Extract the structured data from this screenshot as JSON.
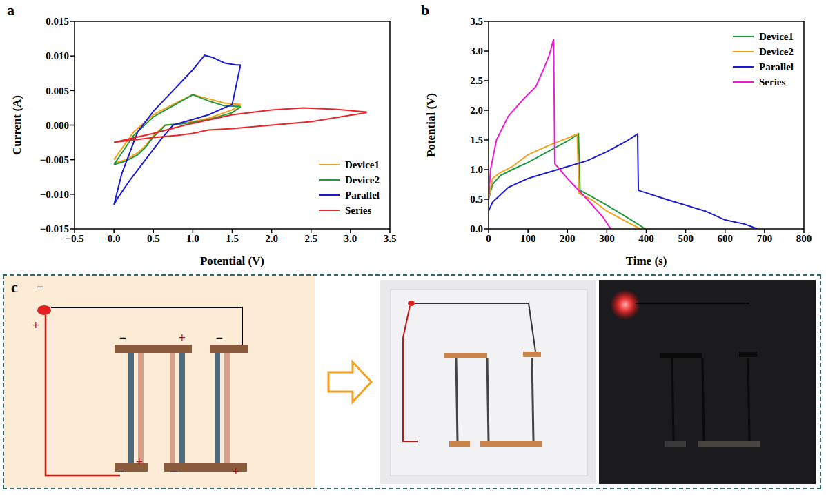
{
  "chart_data": [
    {
      "panel_label": "a",
      "type": "line",
      "x_label": "Potential (V)",
      "y_label": "Current (A)",
      "xlim": [
        -0.5,
        3.5
      ],
      "xticks": [
        {
          "value": -0.5,
          "label": "−0.5"
        },
        {
          "value": 0,
          "label": "0.0"
        },
        0.5,
        {
          "value": 1,
          "label": "1.0"
        },
        1.5,
        {
          "value": 2,
          "label": "2.0"
        },
        2.5,
        {
          "value": 3,
          "label": "3.0"
        },
        3.5
      ],
      "ylim": [
        -0.015,
        0.015
      ],
      "yticks": [
        {
          "value": -0.015,
          "label": "−0.015"
        },
        {
          "value": -0.01,
          "label": "−0.010"
        },
        {
          "value": -0.005,
          "label": "−0.005"
        },
        {
          "value": 0,
          "label": "0.000"
        },
        {
          "value": 0.005,
          "label": "0.005"
        },
        {
          "value": 0.01,
          "label": "0.010"
        },
        {
          "value": 0.015,
          "label": "0.015"
        }
      ],
      "legend": "lower right",
      "series": [
        {
          "name": "Device1",
          "color": "#f7a11a",
          "x": [
            0,
            0.25,
            0.5,
            0.75,
            1.0,
            1.2,
            1.4,
            1.6,
            1.6,
            1.5,
            1.2,
            1.0,
            0.8,
            0.65,
            0.6,
            0.5,
            0.4,
            0.3,
            0.15,
            0
          ],
          "values": [
            -0.005,
            -0.001,
            0.0015,
            0.003,
            0.0044,
            0.0038,
            0.0032,
            0.003,
            0.0029,
            0.0022,
            0.001,
            0.0005,
            0.0002,
            0.0,
            -0.0005,
            -0.0015,
            -0.003,
            -0.004,
            -0.005,
            -0.0055
          ]
        },
        {
          "name": "Device2",
          "color": "#1f9a3a",
          "x": [
            0,
            0.25,
            0.5,
            0.75,
            1.0,
            1.2,
            1.4,
            1.6,
            1.6,
            1.5,
            1.2,
            1.0,
            0.8,
            0.65,
            0.6,
            0.5,
            0.4,
            0.3,
            0.15,
            0
          ],
          "values": [
            -0.0057,
            -0.0015,
            0.0012,
            0.0028,
            0.0044,
            0.0035,
            0.0028,
            0.0027,
            0.0026,
            0.0018,
            0.0008,
            0.0004,
            0.0001,
            0.0,
            -0.0006,
            -0.0017,
            -0.0032,
            -0.0043,
            -0.0052,
            -0.0057
          ]
        },
        {
          "name": "Parallel",
          "color": "#1a1ad6",
          "x": [
            0,
            0.1,
            0.3,
            0.5,
            0.75,
            1.0,
            1.15,
            1.25,
            1.4,
            1.55,
            1.6,
            1.6,
            1.5,
            1.2,
            0.9,
            0.75,
            0.6,
            0.4,
            0.2,
            0.05,
            0
          ],
          "values": [
            -0.0115,
            -0.007,
            -0.001,
            0.002,
            0.005,
            0.008,
            0.0101,
            0.0098,
            0.009,
            0.0087,
            0.0087,
            0.0084,
            0.003,
            0.0015,
            0.0005,
            0.0,
            -0.002,
            -0.005,
            -0.008,
            -0.0105,
            -0.0115
          ]
        },
        {
          "name": "Series",
          "color": "#e8262a",
          "x": [
            0,
            0.5,
            0.9,
            1.5,
            2.0,
            2.4,
            2.8,
            3.2,
            3.2,
            2.5,
            2.0,
            1.5,
            1.2,
            1.0,
            0.8,
            0.5,
            0
          ],
          "values": [
            -0.0025,
            -0.0012,
            0.0,
            0.0015,
            0.0022,
            0.0025,
            0.0023,
            0.0019,
            0.0018,
            0.0005,
            0.0,
            -0.0005,
            -0.0007,
            -0.0012,
            -0.0015,
            -0.0018,
            -0.0025
          ]
        }
      ]
    },
    {
      "panel_label": "b",
      "type": "line",
      "x_label": "Time (s)",
      "y_label": "Potential (V)",
      "xlim": [
        0,
        800
      ],
      "xticks": [
        0,
        100,
        200,
        300,
        400,
        500,
        600,
        700,
        800
      ],
      "ylim": [
        0,
        3.5
      ],
      "yticks": [
        {
          "value": 0,
          "label": "0.0"
        },
        0.5,
        {
          "value": 1,
          "label": "1.0"
        },
        1.5,
        {
          "value": 2,
          "label": "2.0"
        },
        2.5,
        {
          "value": 3,
          "label": "3.0"
        },
        3.5
      ],
      "legend": "upper right",
      "series": [
        {
          "name": "Device1",
          "color": "#1f9a3a",
          "x": [
            0,
            10,
            30,
            60,
            100,
            150,
            200,
            228,
            232,
            260,
            300,
            350,
            398
          ],
          "values": [
            0.5,
            0.75,
            0.9,
            1.0,
            1.12,
            1.3,
            1.48,
            1.6,
            0.65,
            0.55,
            0.4,
            0.2,
            0.0
          ]
        },
        {
          "name": "Device2",
          "color": "#f7a11a",
          "x": [
            0,
            10,
            30,
            60,
            100,
            150,
            200,
            225,
            229,
            260,
            300,
            350,
            385
          ],
          "values": [
            0.5,
            0.85,
            0.95,
            1.05,
            1.25,
            1.4,
            1.53,
            1.6,
            0.6,
            0.5,
            0.3,
            0.12,
            0.0
          ]
        },
        {
          "name": "Parallel",
          "color": "#1a1ad6",
          "x": [
            0,
            10,
            50,
            100,
            200,
            250,
            300,
            350,
            378,
            380,
            450,
            550,
            600,
            650,
            682
          ],
          "values": [
            0.3,
            0.45,
            0.7,
            0.85,
            1.05,
            1.15,
            1.3,
            1.48,
            1.6,
            0.65,
            0.5,
            0.3,
            0.15,
            0.08,
            0.0
          ]
        },
        {
          "name": "Series",
          "color": "#f01ad2",
          "x": [
            0,
            5,
            20,
            50,
            90,
            120,
            140,
            155,
            165,
            168,
            200,
            250,
            290,
            310
          ],
          "values": [
            0.5,
            1.0,
            1.5,
            1.9,
            2.2,
            2.4,
            2.7,
            2.95,
            3.2,
            1.1,
            0.85,
            0.5,
            0.2,
            0.0
          ]
        }
      ]
    }
  ],
  "panel_c": {
    "panel_label": "c",
    "signs": [
      "−",
      "+",
      "−",
      "+",
      "−",
      "−",
      "+",
      "−",
      "+"
    ]
  }
}
